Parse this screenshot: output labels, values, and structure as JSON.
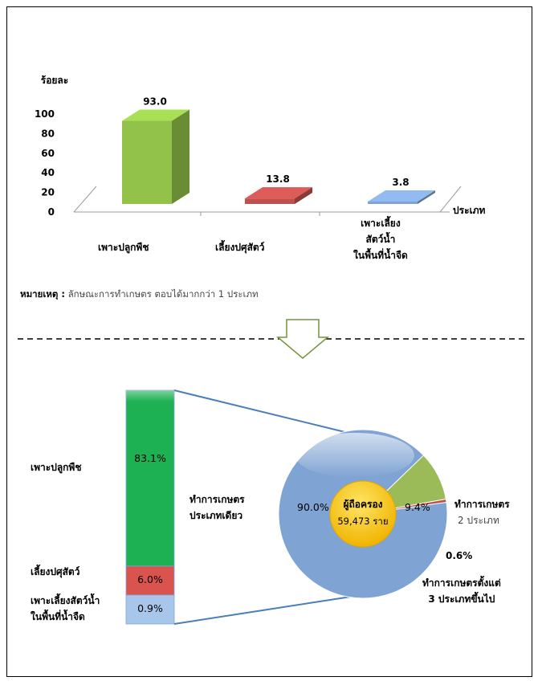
{
  "chart_data": [
    {
      "type": "bar",
      "ylabel": "ร้อยละ",
      "xlabel": "ประเภท",
      "categories": [
        "เพาะปลูกพืช",
        "เลี้ยงปศุสัตว์",
        "เพาะเลี้ยงสัตว์น้ำในพื้นที่น้ำจืด"
      ],
      "category_lines": [
        [
          "เพาะปลูกพืช"
        ],
        [
          "เลี้ยงปศุสัตว์"
        ],
        [
          "เพาะเลี้ยง",
          "สัตว์น้ำ",
          "ในพื้นที่น้ำจืด"
        ]
      ],
      "values": [
        93.0,
        13.8,
        3.8
      ],
      "value_labels": [
        "93.0",
        "13.8",
        "3.8"
      ],
      "ylim": [
        0,
        100
      ],
      "yticks": [
        0,
        20,
        40,
        60,
        80,
        100
      ],
      "colors": [
        "#92c24a",
        "#c0504d",
        "#7fa3d2"
      ]
    },
    {
      "type": "pie",
      "center_label": "ผู้ถือครอง",
      "center_value": "59,473 ราย",
      "slices": [
        {
          "label_lines": [
            "ทำการเกษตร",
            "ประเภทเดียว"
          ],
          "value": 90.0,
          "value_label": "90.0%",
          "color": "#7fa3d2"
        },
        {
          "label_lines": [
            "ทำการเกษตร",
            "2 ประเภท"
          ],
          "value": 9.4,
          "value_label": "9.4%",
          "color": "#9bbb59"
        },
        {
          "label_lines": [
            "ทำการเกษตรตั้งแต่",
            "3 ประเภทขึ้นไป"
          ],
          "value": 0.6,
          "value_label": "0.6%",
          "color": "#c0504d"
        }
      ]
    },
    {
      "type": "bar",
      "stacked": true,
      "segments": [
        {
          "label_lines": [
            "เพาะปลูกพืช"
          ],
          "value": 83.1,
          "value_label": "83.1%",
          "color": "#1eb154"
        },
        {
          "label_lines": [
            "เลี้ยงปศุสัตว์"
          ],
          "value": 6.0,
          "value_label": "6.0%",
          "color": "#d9534f"
        },
        {
          "label_lines": [
            "เพาะเลี้ยงสัตว์น้ำ",
            "ในพื้นที่น้ำจืด"
          ],
          "value": 0.9,
          "value_label": "0.9%",
          "color": "#a8c6ea"
        }
      ]
    }
  ],
  "note": {
    "heading": "หมายเหตุ :",
    "text": "ลักษณะการทำเกษตร ตอบได้มากกว่า 1 ประเภท"
  },
  "colors": {
    "connector": "#4a7ebb",
    "arrow": "#77933c",
    "divider": "#000000"
  }
}
